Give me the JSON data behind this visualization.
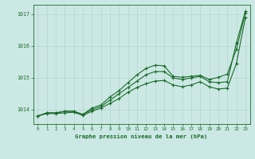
{
  "title": "Graphe pression niveau de la mer (hPa)",
  "background_color": "#cce8e4",
  "grid_color": "#b8d8d4",
  "line_color": "#1a6b2a",
  "x_ticks": [
    0,
    1,
    2,
    3,
    4,
    5,
    6,
    7,
    8,
    9,
    10,
    11,
    12,
    13,
    14,
    15,
    16,
    17,
    18,
    19,
    20,
    21,
    22,
    23
  ],
  "y_ticks": [
    1014,
    1015,
    1016,
    1017
  ],
  "ylim": [
    1013.55,
    1017.3
  ],
  "xlim": [
    -0.5,
    23.5
  ],
  "series1": [
    1013.8,
    1013.9,
    1013.9,
    1013.95,
    1013.95,
    1013.85,
    1014.05,
    1014.15,
    1014.4,
    1014.6,
    1014.85,
    1015.1,
    1015.3,
    1015.4,
    1015.38,
    1015.05,
    1015.02,
    1015.05,
    1015.08,
    1014.95,
    1015.02,
    1015.12,
    1015.9,
    1017.05
  ],
  "series2": [
    1013.8,
    1013.9,
    1013.9,
    1013.95,
    1013.95,
    1013.85,
    1014.0,
    1014.1,
    1014.3,
    1014.5,
    1014.7,
    1014.9,
    1015.1,
    1015.2,
    1015.2,
    1015.0,
    1014.95,
    1015.0,
    1015.05,
    1014.88,
    1014.85,
    1014.88,
    1016.1,
    1017.1
  ],
  "series3": [
    1013.8,
    1013.88,
    1013.88,
    1013.9,
    1013.92,
    1013.82,
    1013.95,
    1014.05,
    1014.2,
    1014.35,
    1014.55,
    1014.7,
    1014.82,
    1014.9,
    1014.92,
    1014.78,
    1014.72,
    1014.78,
    1014.88,
    1014.72,
    1014.65,
    1014.68,
    1015.45,
    1016.9
  ]
}
